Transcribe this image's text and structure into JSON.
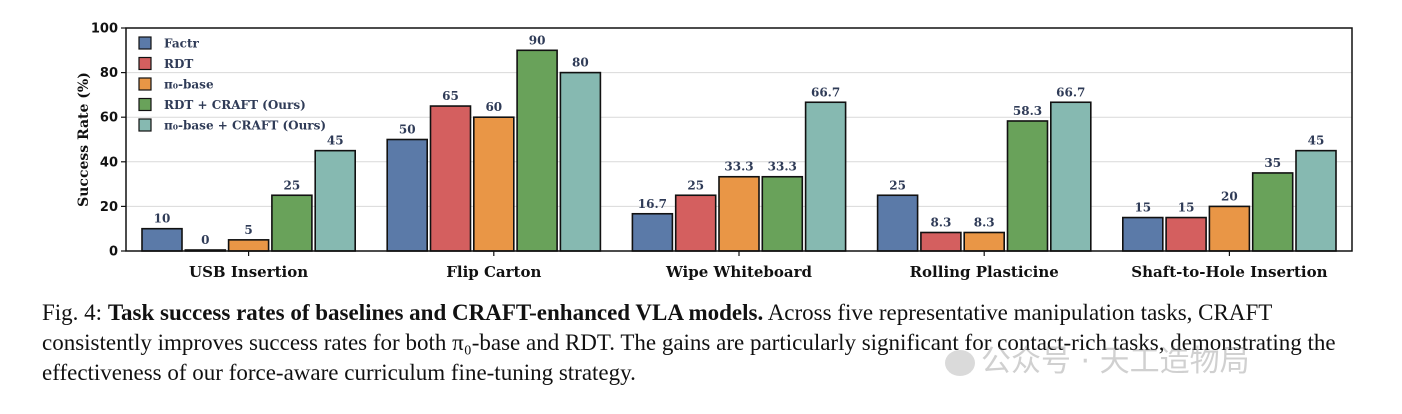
{
  "chart_data": {
    "type": "bar",
    "ylabel": "Success Rate (%)",
    "ylim": [
      0,
      100
    ],
    "yticks": [
      "0",
      "20",
      "40",
      "60",
      "80",
      "100"
    ],
    "grid": "horizontal",
    "legend_position": "top-left",
    "categories": [
      "USB Insertion",
      "Flip Carton",
      "Wipe Whiteboard",
      "Rolling Plasticine",
      "Shaft-to-Hole Insertion"
    ],
    "series": [
      {
        "name": "Factr",
        "color": "#5b7aa8",
        "values": [
          10,
          50,
          16.7,
          25,
          15
        ],
        "labels": [
          "10",
          "50",
          "16.7",
          "25",
          "15"
        ]
      },
      {
        "name": "RDT",
        "color": "#d45f5f",
        "values": [
          0,
          65,
          25,
          8.3,
          15
        ],
        "labels": [
          "0",
          "65",
          "25",
          "8.3",
          "15"
        ]
      },
      {
        "name": "π₀-base",
        "color": "#e99646",
        "values": [
          5,
          60,
          33.3,
          8.3,
          20
        ],
        "labels": [
          "5",
          "60",
          "33.3",
          "8.3",
          "20"
        ]
      },
      {
        "name": "RDT + CRAFT (Ours)",
        "color": "#69a25a",
        "values": [
          25,
          90,
          33.3,
          58.3,
          35
        ],
        "labels": [
          "25",
          "90",
          "33.3",
          "58.3",
          "35"
        ]
      },
      {
        "name": "π₀-base + CRAFT (Ours)",
        "color": "#86b9b1",
        "values": [
          45,
          80,
          66.7,
          66.7,
          45
        ],
        "labels": [
          "45",
          "80",
          "66.7",
          "66.7",
          "45"
        ]
      }
    ]
  },
  "caption": {
    "prefix": "Fig. 4: ",
    "bold": "Task success rates of baselines and CRAFT-enhanced VLA models.",
    "text": " Across five representative manipulation tasks, CRAFT consistently improves success rates for both π₀-base and RDT. The gains are particularly significant for contact-rich tasks, demonstrating the effectiveness of our force-aware curriculum fine-tuning strategy."
  },
  "watermark": {
    "icon": "wechat-icon",
    "text": "公众号 · 天工造物局"
  }
}
